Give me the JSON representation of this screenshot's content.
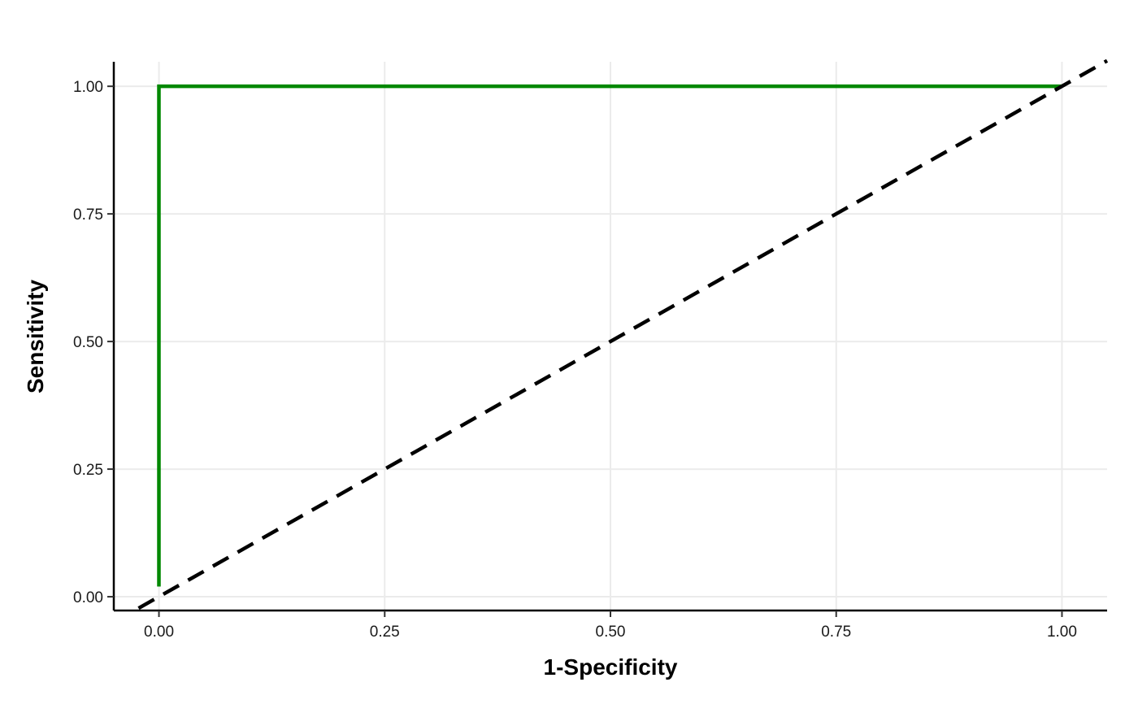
{
  "chart_data": {
    "type": "line",
    "title": "",
    "xlabel": "1-Specificity",
    "ylabel": "Sensitivity",
    "xlim": [
      -0.05,
      1.05
    ],
    "ylim": [
      -0.027,
      1.048
    ],
    "x_ticks": [
      0,
      0.25,
      0.5,
      0.75,
      1
    ],
    "y_ticks": [
      0,
      0.25,
      0.5,
      0.75,
      1
    ],
    "x_tick_labels": [
      "0.00",
      "0.25",
      "0.50",
      "0.75",
      "1.00"
    ],
    "y_tick_labels": [
      "0.00",
      "0.25",
      "0.50",
      "0.75",
      "1.00"
    ],
    "grid": true,
    "series": [
      {
        "style": "solid",
        "color": "#008800",
        "x": [
          0,
          0,
          1
        ],
        "y": [
          0.02,
          1,
          1
        ]
      },
      {
        "style": "dashed",
        "color": "#000000",
        "x": [
          -0.05,
          1.05
        ],
        "y": [
          -0.05,
          1.05
        ]
      }
    ]
  }
}
